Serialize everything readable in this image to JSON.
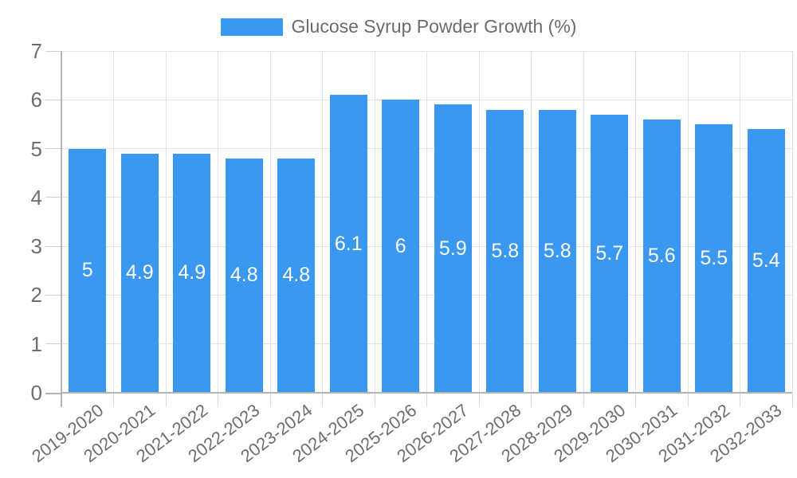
{
  "legend": {
    "label": "Glucose Syrup Powder Growth (%)"
  },
  "chart_data": {
    "type": "bar",
    "title": "Glucose Syrup Powder Growth (%)",
    "categories": [
      "2019-2020",
      "2020-2021",
      "2021-2022",
      "2022-2023",
      "2023-2024",
      "2024-2025",
      "2025-2026",
      "2026-2027",
      "2027-2028",
      "2028-2029",
      "2029-2030",
      "2030-2031",
      "2031-2032",
      "2032-2033"
    ],
    "series": [
      {
        "name": "Glucose Syrup Powder Growth (%)",
        "values": [
          5,
          4.9,
          4.9,
          4.8,
          4.8,
          6.1,
          6,
          5.9,
          5.8,
          5.8,
          5.7,
          5.6,
          5.5,
          5.4
        ]
      }
    ],
    "value_labels": [
      "5",
      "4.9",
      "4.9",
      "4.8",
      "4.8",
      "6.1",
      "6",
      "5.9",
      "5.8",
      "5.8",
      "5.7",
      "5.6",
      "5.5",
      "5.4"
    ],
    "xlabel": "",
    "ylabel": "",
    "ylim": [
      0,
      7
    ],
    "yticks": [
      0,
      1,
      2,
      3,
      4,
      5,
      6,
      7
    ],
    "grid": true,
    "legend_position": "top",
    "colors": {
      "bar": "#3b98f0",
      "grid": "#e2e2e2",
      "axis": "#b3b3b3",
      "tick": "#cfcfcf",
      "text": "#6e6e6e",
      "value_text": "#ffffff"
    }
  }
}
